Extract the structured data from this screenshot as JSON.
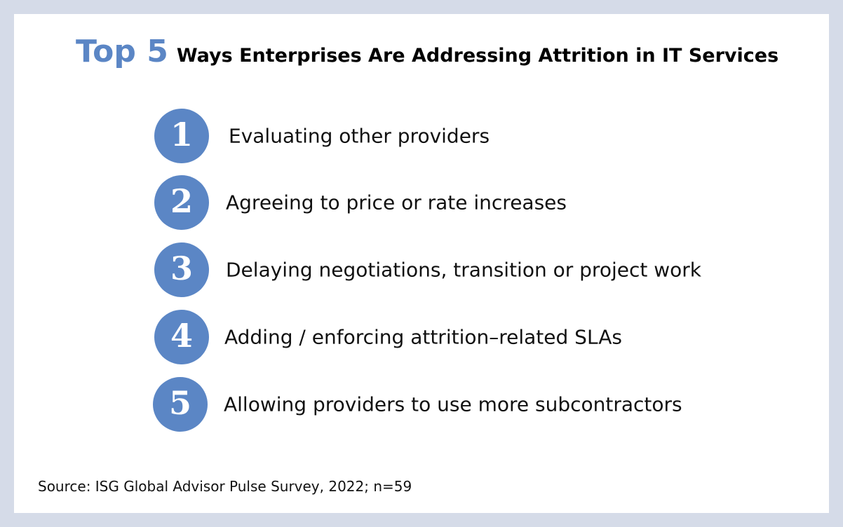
{
  "header": {
    "highlight": "Top 5",
    "title": "Ways Enterprises Are Addressing Attrition in IT Services"
  },
  "items": [
    {
      "number": "1",
      "text": "Evaluating other providers"
    },
    {
      "number": "2",
      "text": "Agreeing to price or rate increases"
    },
    {
      "number": "3",
      "text": "Delaying negotiations, transition or project work"
    },
    {
      "number": "4",
      "text": "Adding / enforcing attrition–related SLAs"
    },
    {
      "number": "5",
      "text": "Allowing providers to use more subcontractors"
    }
  ],
  "source": "Source: ISG Global Advisor Pulse Survey, 2022; n=59"
}
